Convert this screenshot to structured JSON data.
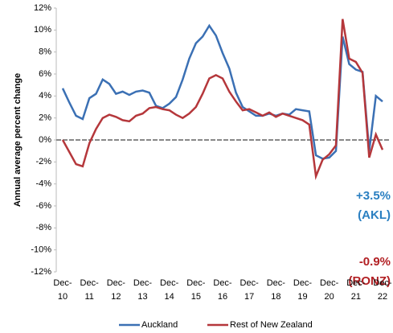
{
  "chart_data": {
    "type": "line",
    "y_label": "Annual average percent change",
    "categories": [
      "Dec-10",
      null,
      null,
      null,
      "Dec-11",
      null,
      null,
      null,
      "Dec-12",
      null,
      null,
      null,
      "Dec-13",
      null,
      null,
      null,
      "Dec-14",
      null,
      null,
      null,
      "Dec-15",
      null,
      null,
      null,
      "Dec-16",
      null,
      null,
      null,
      "Dec-17",
      null,
      null,
      null,
      "Dec-18",
      null,
      null,
      null,
      "Dec-19",
      null,
      null,
      null,
      "Dec-20",
      null,
      null,
      null,
      "Dec-21",
      null,
      null,
      null,
      "Dec-22"
    ],
    "series": [
      {
        "name": "Auckland",
        "color": "#3b70b4",
        "values": [
          4.7,
          3.4,
          2.2,
          1.9,
          3.8,
          4.2,
          5.5,
          5.1,
          4.2,
          4.4,
          4.1,
          4.4,
          4.5,
          4.3,
          3.1,
          2.9,
          3.3,
          3.9,
          5.5,
          7.4,
          8.8,
          9.4,
          10.4,
          9.5,
          7.9,
          6.5,
          4.3,
          3.0,
          2.6,
          2.2,
          2.2,
          2.4,
          2.2,
          2.4,
          2.3,
          2.8,
          2.7,
          2.6,
          -1.4,
          -1.7,
          -1.6,
          -1.0,
          9.4,
          6.9,
          6.4,
          6.2,
          -1.0,
          4.0,
          3.5
        ]
      },
      {
        "name": "Rest of New Zealand",
        "color": "#b5373b",
        "values": [
          0,
          -1.1,
          -2.2,
          -2.4,
          -0.3,
          1.0,
          2.0,
          2.3,
          2.1,
          1.8,
          1.7,
          2.2,
          2.4,
          2.9,
          3.0,
          2.8,
          2.7,
          2.3,
          2.0,
          2.4,
          3.0,
          4.2,
          5.6,
          5.9,
          5.6,
          4.4,
          3.5,
          2.7,
          2.8,
          2.5,
          2.2,
          2.5,
          2.1,
          2.4,
          2.2,
          2.0,
          1.8,
          1.4,
          -3.3,
          -1.8,
          -1.3,
          -0.5,
          11.0,
          7.4,
          7.1,
          6.1,
          -1.6,
          0.5,
          -0.9
        ]
      }
    ],
    "ylim": [
      -12,
      12
    ],
    "yticks": [
      {
        "value": -12,
        "label": "-12%"
      },
      {
        "value": -10,
        "label": "-10%"
      },
      {
        "value": -8,
        "label": "-8%"
      },
      {
        "value": -6,
        "label": "-6%"
      },
      {
        "value": -4,
        "label": "-4%"
      },
      {
        "value": -2,
        "label": "-2%"
      },
      {
        "value": 0,
        "label": "0%"
      },
      {
        "value": 2,
        "label": "2%"
      },
      {
        "value": 4,
        "label": "4%"
      },
      {
        "value": 6,
        "label": "6%"
      },
      {
        "value": 8,
        "label": "8%"
      },
      {
        "value": 10,
        "label": "10%"
      },
      {
        "value": 12,
        "label": "12%"
      }
    ],
    "annotations": [
      {
        "text": "+3.5%",
        "color": "#2a7fc1"
      },
      {
        "text": "(AKL)",
        "color": "#2a7fc1"
      },
      {
        "text": "-0.9%",
        "color": "#b22024"
      },
      {
        "text": "(RONZ)",
        "color": "#b22024"
      }
    ]
  }
}
